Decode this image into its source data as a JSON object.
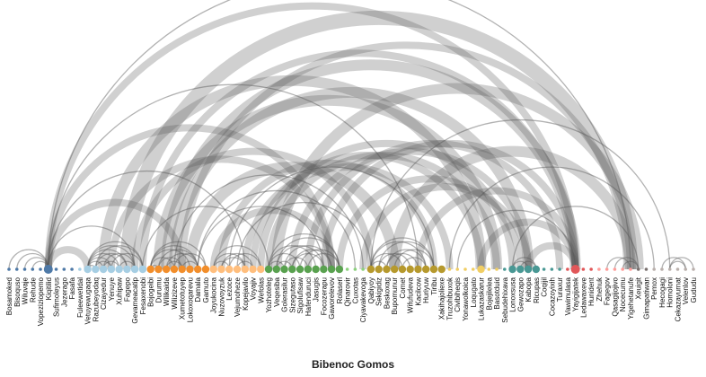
{
  "title": "Bibenoc Gomos",
  "nodes": [
    {
      "label": "Bosamoked",
      "group": 0,
      "size": 1
    },
    {
      "label": "Bisoquso",
      "group": 0,
      "size": 1
    },
    {
      "label": "Wiluvaje",
      "group": 0,
      "size": 1
    },
    {
      "label": "Rehude",
      "group": 0,
      "size": 1
    },
    {
      "label": "Vopeziziopemo",
      "group": 0,
      "size": 1
    },
    {
      "label": "Kiqitilid",
      "group": 0,
      "size": 3
    },
    {
      "label": "Sufirnoleyus",
      "group": 0,
      "size": 1
    },
    {
      "label": "Jezerago",
      "group": 0,
      "size": 1
    },
    {
      "label": "Fasafa",
      "group": 0,
      "size": 1
    },
    {
      "label": "Fuleewetidal",
      "group": 1,
      "size": 1
    },
    {
      "label": "Vetuyewugaqa",
      "group": 1,
      "size": 2
    },
    {
      "label": "Razubeyodaq",
      "group": 1,
      "size": 2
    },
    {
      "label": "Cizayedur",
      "group": 1,
      "size": 2
    },
    {
      "label": "Yenuye",
      "group": 1,
      "size": 2
    },
    {
      "label": "Xuhipaw",
      "group": 1,
      "size": 2
    },
    {
      "label": "Fagepo",
      "group": 1,
      "size": 2
    },
    {
      "label": "Gevameacatip",
      "group": 1,
      "size": 2
    },
    {
      "label": "Fesaxenobi",
      "group": 1,
      "size": 2
    },
    {
      "label": "Bojogeibi",
      "group": 2,
      "size": 2
    },
    {
      "label": "Durumu",
      "group": 2,
      "size": 2
    },
    {
      "label": "Wilikaida",
      "group": 2,
      "size": 2
    },
    {
      "label": "Wilizizeve",
      "group": 2,
      "size": 2
    },
    {
      "label": "Xumetotuyep",
      "group": 2,
      "size": 2
    },
    {
      "label": "Lokoxoqarevu",
      "group": 2,
      "size": 2
    },
    {
      "label": "Damala",
      "group": 2,
      "size": 2
    },
    {
      "label": "Gamuto",
      "group": 2,
      "size": 2
    },
    {
      "label": "Joyukocina",
      "group": 3,
      "size": 2
    },
    {
      "label": "Nuzovoyzuk",
      "group": 3,
      "size": 2
    },
    {
      "label": "Lezoce",
      "group": 3,
      "size": 2
    },
    {
      "label": "Vejumoheze",
      "group": 3,
      "size": 2
    },
    {
      "label": "Kopejavilo",
      "group": 3,
      "size": 2
    },
    {
      "label": "Voyajiv",
      "group": 3,
      "size": 2
    },
    {
      "label": "Wefolas",
      "group": 3,
      "size": 2
    },
    {
      "label": "Yozhoteleg",
      "group": 4,
      "size": 2
    },
    {
      "label": "Veqesiba",
      "group": 4,
      "size": 2
    },
    {
      "label": "Golerasilur",
      "group": 4,
      "size": 2
    },
    {
      "label": "Sizegutaso",
      "group": 4,
      "size": 2
    },
    {
      "label": "Sigolufisaw",
      "group": 4,
      "size": 2
    },
    {
      "label": "Hafenduruci",
      "group": 4,
      "size": 2
    },
    {
      "label": "Jasugis",
      "group": 4,
      "size": 2
    },
    {
      "label": "Focozerapu",
      "group": 4,
      "size": 2
    },
    {
      "label": "Gaworelevov",
      "group": 4,
      "size": 2
    },
    {
      "label": "Rolaserl",
      "group": 4,
      "size": 2
    },
    {
      "label": "Qinarovir",
      "group": 5,
      "size": 1
    },
    {
      "label": "Cuxotas",
      "group": 5,
      "size": 1
    },
    {
      "label": "Ciyavakevoga",
      "group": 5,
      "size": 1
    },
    {
      "label": "Qabiyoy",
      "group": 6,
      "size": 2
    },
    {
      "label": "Sekigidiz",
      "group": 6,
      "size": 2
    },
    {
      "label": "Beskoxag",
      "group": 6,
      "size": 2
    },
    {
      "label": "Bupomunur",
      "group": 6,
      "size": 2
    },
    {
      "label": "Comet",
      "group": 6,
      "size": 2
    },
    {
      "label": "Wifufudeva",
      "group": 6,
      "size": 2
    },
    {
      "label": "Kacilcow",
      "group": 6,
      "size": 2
    },
    {
      "label": "Huriyuw",
      "group": 6,
      "size": 2
    },
    {
      "label": "Tiribu",
      "group": 6,
      "size": 2
    },
    {
      "label": "Xakihajoliexe",
      "group": 6,
      "size": 2
    },
    {
      "label": "Truzohibuxok",
      "group": 7,
      "size": 1
    },
    {
      "label": "Civibiheqis",
      "group": 7,
      "size": 1
    },
    {
      "label": "Yonawolkoica",
      "group": 7,
      "size": 1
    },
    {
      "label": "Loqugato",
      "group": 7,
      "size": 1
    },
    {
      "label": "Lukazaskarur",
      "group": 7,
      "size": 2
    },
    {
      "label": "Bojejilelea",
      "group": 7,
      "size": 1
    },
    {
      "label": "Basotduid",
      "group": 7,
      "size": 1
    },
    {
      "label": "Sebudehixava",
      "group": 8,
      "size": 1
    },
    {
      "label": "Lonoxsusa",
      "group": 8,
      "size": 2
    },
    {
      "label": "Gewozapo",
      "group": 8,
      "size": 2
    },
    {
      "label": "Kabopa",
      "group": 8,
      "size": 2
    },
    {
      "label": "Ricupas",
      "group": 8,
      "size": 2
    },
    {
      "label": "Coqijil",
      "group": 8,
      "size": 1
    },
    {
      "label": "Cocazoyixih",
      "group": 8,
      "size": 1
    },
    {
      "label": "Turaxur",
      "group": 8,
      "size": 1
    },
    {
      "label": "Vawimulasa",
      "group": 9,
      "size": 1
    },
    {
      "label": "Yayigijatek",
      "group": 9,
      "size": 3
    },
    {
      "label": "Ledawaxeve",
      "group": 9,
      "size": 1
    },
    {
      "label": "Hunident",
      "group": 9,
      "size": 1
    },
    {
      "label": "Zhehuk",
      "group": 10,
      "size": 1
    },
    {
      "label": "Fagegov",
      "group": 10,
      "size": 1
    },
    {
      "label": "Qasagijojivo",
      "group": 10,
      "size": 1
    },
    {
      "label": "Nocecumu",
      "group": 10,
      "size": 1
    },
    {
      "label": "Yigehetanufe",
      "group": 10,
      "size": 1
    },
    {
      "label": "Xeuigit",
      "group": 11,
      "size": 1
    },
    {
      "label": "Gimapatiwan",
      "group": 11,
      "size": 1
    },
    {
      "label": "Pemox",
      "group": 12,
      "size": 1
    },
    {
      "label": "Hecogagi",
      "group": 12,
      "size": 1
    },
    {
      "label": "Homoloni",
      "group": 12,
      "size": 1
    },
    {
      "label": "Cekazayurnat",
      "group": 12,
      "size": 1
    },
    {
      "label": "Velenlov",
      "group": 12,
      "size": 1
    },
    {
      "label": "Gududu",
      "group": 12,
      "size": 1
    }
  ],
  "group_colors": [
    "#4e79a7",
    "#a6cee3",
    "#f28e2b",
    "#ffbe7d",
    "#59a14f",
    "#8cd17d",
    "#b6992d",
    "#f1ce63",
    "#499894",
    "#e15759",
    "#ff9d9a",
    "#79706e",
    "#bab0ac"
  ],
  "links": [
    [
      5,
      10,
      2
    ],
    [
      5,
      16,
      1
    ],
    [
      5,
      22,
      2
    ],
    [
      5,
      41,
      2
    ],
    [
      5,
      52,
      1
    ],
    [
      5,
      72,
      2
    ],
    [
      5,
      79,
      1
    ],
    [
      0,
      5,
      1
    ],
    [
      1,
      5,
      1
    ],
    [
      3,
      5,
      1
    ],
    [
      2,
      5,
      1
    ],
    [
      10,
      11,
      1
    ],
    [
      10,
      12,
      1
    ],
    [
      10,
      13,
      1
    ],
    [
      10,
      14,
      1
    ],
    [
      10,
      15,
      1
    ],
    [
      10,
      16,
      1
    ],
    [
      10,
      17,
      1
    ],
    [
      11,
      13,
      1
    ],
    [
      11,
      15,
      1
    ],
    [
      12,
      16,
      1
    ],
    [
      13,
      17,
      1
    ],
    [
      14,
      16,
      1
    ],
    [
      12,
      14,
      1
    ],
    [
      11,
      17,
      1
    ],
    [
      18,
      19,
      1
    ],
    [
      18,
      21,
      1
    ],
    [
      18,
      23,
      1
    ],
    [
      18,
      25,
      1
    ],
    [
      19,
      22,
      1
    ],
    [
      20,
      24,
      1
    ],
    [
      19,
      24,
      1
    ],
    [
      21,
      25,
      1
    ],
    [
      20,
      22,
      1
    ],
    [
      22,
      24,
      1
    ],
    [
      18,
      24,
      1
    ],
    [
      26,
      28,
      1
    ],
    [
      26,
      30,
      1
    ],
    [
      27,
      31,
      1
    ],
    [
      28,
      32,
      1
    ],
    [
      26,
      32,
      1
    ],
    [
      29,
      31,
      1
    ],
    [
      27,
      30,
      1
    ],
    [
      33,
      35,
      1
    ],
    [
      33,
      37,
      1
    ],
    [
      33,
      39,
      1
    ],
    [
      33,
      42,
      1
    ],
    [
      34,
      36,
      1
    ],
    [
      34,
      40,
      1
    ],
    [
      35,
      38,
      1
    ],
    [
      36,
      41,
      1
    ],
    [
      37,
      42,
      1
    ],
    [
      34,
      42,
      1
    ],
    [
      35,
      41,
      1
    ],
    [
      38,
      42,
      1
    ],
    [
      36,
      40,
      1
    ],
    [
      46,
      48,
      1
    ],
    [
      46,
      50,
      1
    ],
    [
      46,
      54,
      1
    ],
    [
      47,
      51,
      1
    ],
    [
      48,
      53,
      1
    ],
    [
      46,
      53,
      1
    ],
    [
      49,
      54,
      1
    ],
    [
      47,
      54,
      1
    ],
    [
      50,
      53,
      1
    ],
    [
      48,
      52,
      1
    ],
    [
      64,
      66,
      1
    ],
    [
      64,
      67,
      1
    ],
    [
      65,
      67,
      1
    ],
    [
      84,
      87,
      1
    ],
    [
      83,
      86,
      1
    ],
    [
      84,
      86,
      1
    ],
    [
      76,
      79,
      1
    ],
    [
      77,
      80,
      1
    ],
    [
      78,
      80,
      1
    ],
    [
      12,
      60,
      3
    ],
    [
      13,
      41,
      2
    ],
    [
      15,
      79,
      4
    ],
    [
      17,
      72,
      2
    ],
    [
      19,
      62,
      3
    ],
    [
      20,
      72,
      3
    ],
    [
      21,
      66,
      3
    ],
    [
      22,
      79,
      2
    ],
    [
      23,
      49,
      3
    ],
    [
      24,
      44,
      1
    ],
    [
      26,
      41,
      2
    ],
    [
      27,
      54,
      2
    ],
    [
      30,
      56,
      2
    ],
    [
      32,
      64,
      2
    ],
    [
      33,
      62,
      2
    ],
    [
      34,
      80,
      3
    ],
    [
      36,
      66,
      2
    ],
    [
      38,
      70,
      2
    ],
    [
      40,
      72,
      2
    ],
    [
      42,
      65,
      2
    ],
    [
      45,
      66,
      2
    ],
    [
      46,
      84,
      1
    ],
    [
      49,
      79,
      3
    ],
    [
      52,
      72,
      2
    ],
    [
      56,
      82,
      1
    ],
    [
      60,
      72,
      2
    ],
    [
      64,
      80,
      1
    ],
    [
      66,
      72,
      2
    ],
    [
      17,
      33,
      1
    ],
    [
      24,
      40,
      1
    ],
    [
      29,
      46,
      1
    ],
    [
      5,
      30,
      1
    ],
    [
      16,
      46,
      2
    ],
    [
      21,
      45,
      1
    ],
    [
      57,
      72,
      1
    ],
    [
      28,
      54,
      1
    ],
    [
      31,
      60,
      2
    ]
  ]
}
